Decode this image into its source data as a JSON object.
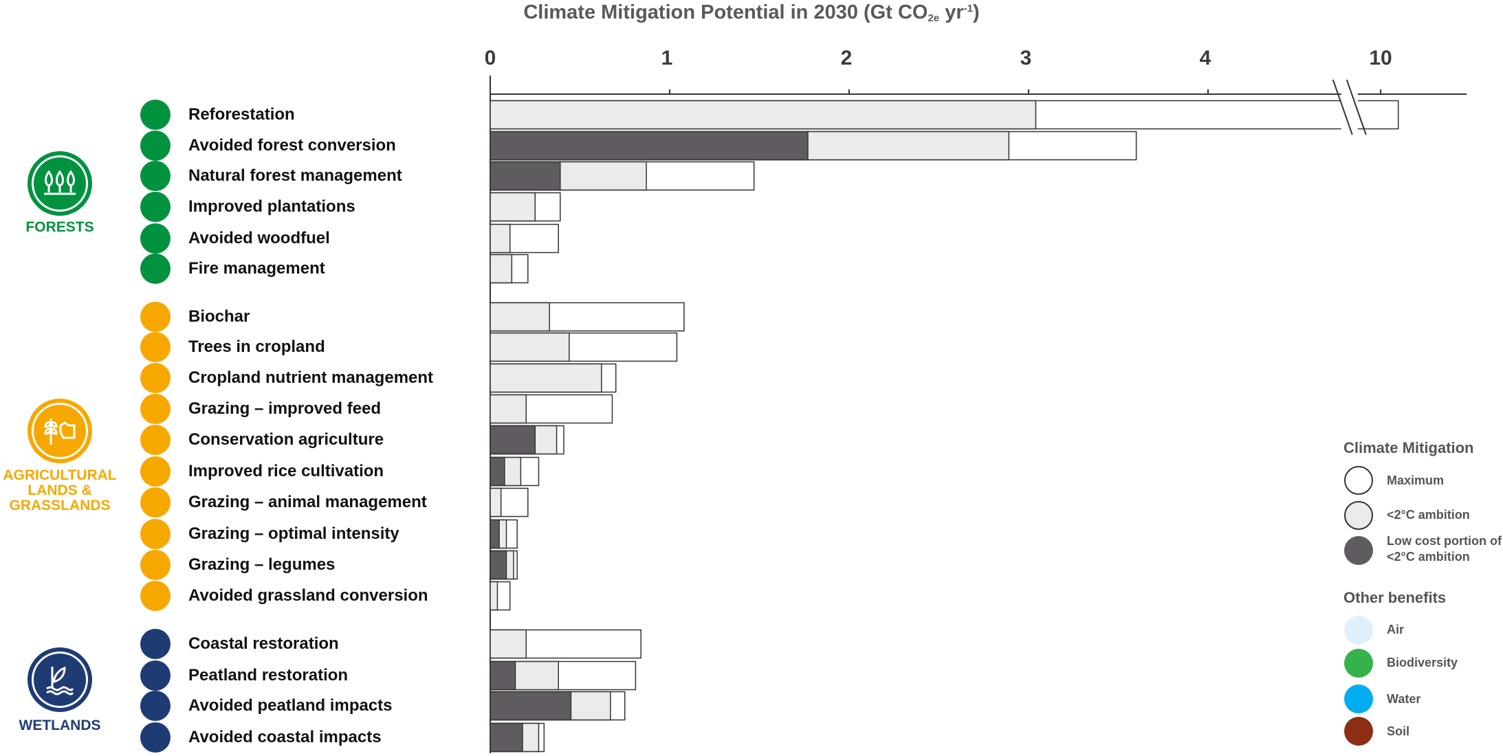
{
  "title": {
    "main": "Climate Mitigation Potential in 2030 (Gt CO",
    "sub": "2e",
    "unit": " yr",
    "sup": "-1",
    "close": ")"
  },
  "axis": {
    "ticks": [
      "0",
      "1",
      "2",
      "3",
      "4",
      "10"
    ]
  },
  "groups": [
    {
      "label_lines": [
        "FORESTS"
      ],
      "color": "#00923f",
      "icon": "tree-icon"
    },
    {
      "label_lines": [
        "AGRICULTURAL",
        "LANDS &",
        "GRASSLANDS"
      ],
      "color": "#f7a800",
      "icon": "wheat-cow-icon"
    },
    {
      "label_lines": [
        "WETLANDS"
      ],
      "color": "#1f3b73",
      "icon": "water-plant-icon"
    }
  ],
  "legend": {
    "mitigation_title": "Climate Mitigation",
    "mitigation_items": [
      {
        "label_lines": [
          "Maximum"
        ],
        "color": "#ffffff"
      },
      {
        "label_lines": [
          "<2°C ambition"
        ],
        "color": "#ebebeb"
      },
      {
        "label_lines": [
          "Low cost portion of",
          "<2°C ambition"
        ],
        "color": "#5f5b60"
      }
    ],
    "benefits_title": "Other benefits",
    "benefit_items": [
      {
        "label": "Air",
        "color": "#dff0fa"
      },
      {
        "label": "Biodiversity",
        "color": "#35b24a"
      },
      {
        "label": "Water",
        "color": "#00aeef"
      },
      {
        "label": "Soil",
        "color": "#8b2e14"
      }
    ]
  },
  "chart_data": {
    "type": "bar",
    "title": "Climate Mitigation Potential in 2030 (Gt CO2e yr-1)",
    "xlabel": "",
    "ylabel": "",
    "xlim": [
      0,
      10.5
    ],
    "axis_break": [
      4.75,
      9.8
    ],
    "x_ticks": [
      0,
      1,
      2,
      3,
      4,
      10
    ],
    "series": [
      {
        "name": "Low cost portion of <2°C ambition",
        "color": "#5f5b60"
      },
      {
        "name": "<2°C ambition",
        "color": "#ebebeb"
      },
      {
        "name": "Maximum",
        "color": "#ffffff"
      }
    ],
    "categories": [
      {
        "name": "Reforestation",
        "group": 0,
        "low": 0,
        "ambition": 3.04,
        "max": 10.1
      },
      {
        "name": "Avoided forest conversion",
        "group": 0,
        "low": 1.77,
        "ambition": 2.89,
        "max": 3.6
      },
      {
        "name": "Natural forest management",
        "group": 0,
        "low": 0.39,
        "ambition": 0.87,
        "max": 1.47
      },
      {
        "name": "Improved plantations",
        "group": 0,
        "low": 0,
        "ambition": 0.25,
        "max": 0.39
      },
      {
        "name": "Avoided woodfuel",
        "group": 0,
        "low": 0,
        "ambition": 0.11,
        "max": 0.38
      },
      {
        "name": "Fire management",
        "group": 0,
        "low": 0,
        "ambition": 0.12,
        "max": 0.21
      },
      {
        "name": "Biochar",
        "group": 1,
        "low": 0,
        "ambition": 0.33,
        "max": 1.08
      },
      {
        "name": "Trees in cropland",
        "group": 1,
        "low": 0,
        "ambition": 0.44,
        "max": 1.04
      },
      {
        "name": "Cropland nutrient management",
        "group": 1,
        "low": 0,
        "ambition": 0.62,
        "max": 0.7
      },
      {
        "name": "Grazing – improved feed",
        "group": 1,
        "low": 0,
        "ambition": 0.2,
        "max": 0.68
      },
      {
        "name": "Conservation agriculture",
        "group": 1,
        "low": 0.25,
        "ambition": 0.37,
        "max": 0.41
      },
      {
        "name": "Improved rice cultivation",
        "group": 1,
        "low": 0.08,
        "ambition": 0.17,
        "max": 0.27
      },
      {
        "name": "Grazing – animal management",
        "group": 1,
        "low": 0,
        "ambition": 0.06,
        "max": 0.21
      },
      {
        "name": "Grazing – optimal intensity",
        "group": 1,
        "low": 0.05,
        "ambition": 0.09,
        "max": 0.15
      },
      {
        "name": "Grazing – legumes",
        "group": 1,
        "low": 0.09,
        "ambition": 0.13,
        "max": 0.15
      },
      {
        "name": "Avoided grassland conversion",
        "group": 1,
        "low": 0,
        "ambition": 0.04,
        "max": 0.11
      },
      {
        "name": "Coastal restoration",
        "group": 2,
        "low": 0,
        "ambition": 0.2,
        "max": 0.84
      },
      {
        "name": "Peatland restoration",
        "group": 2,
        "low": 0.14,
        "ambition": 0.38,
        "max": 0.81
      },
      {
        "name": "Avoided peatland impacts",
        "group": 2,
        "low": 0.45,
        "ambition": 0.67,
        "max": 0.75
      },
      {
        "name": "Avoided coastal impacts",
        "group": 2,
        "low": 0.18,
        "ambition": 0.27,
        "max": 0.3
      }
    ]
  }
}
